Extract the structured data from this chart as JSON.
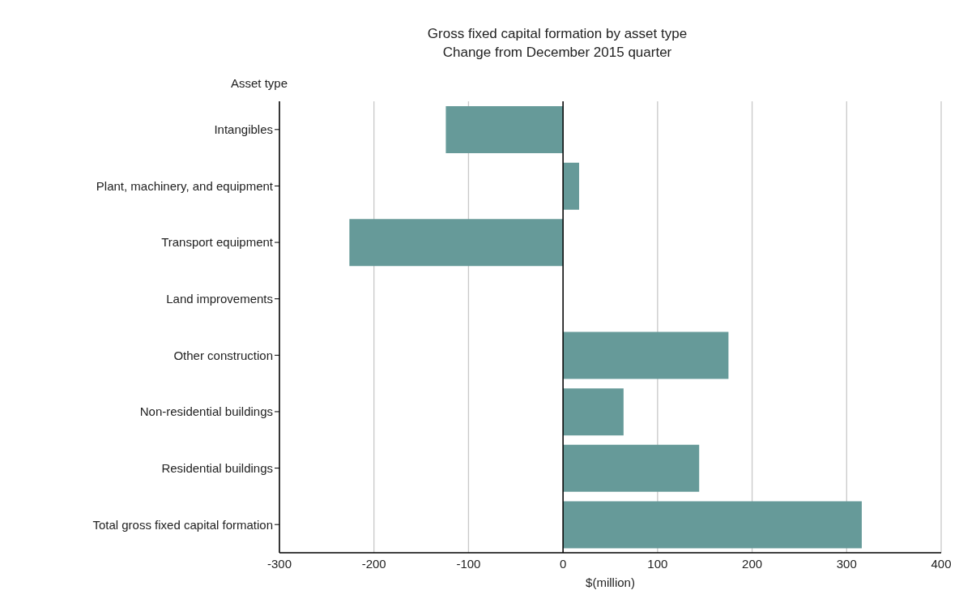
{
  "chart_data": {
    "type": "bar",
    "orientation": "horizontal",
    "title": "Gross fixed capital formation by asset type",
    "subtitle": "Change from December 2015 quarter",
    "ylabel": "Asset type",
    "xlabel": "$(million)",
    "categories": [
      "Intangibles",
      "Plant, machinery, and equipment",
      "Transport equipment",
      "Land improvements",
      "Other construction",
      "Non-residential buildings",
      "Residential buildings",
      "Total gross fixed capital formation"
    ],
    "values": [
      -124,
      17,
      -226,
      0,
      175,
      64,
      144,
      316
    ],
    "color": "#669a99",
    "xlim": [
      -300,
      400
    ],
    "xticks": [
      -300,
      -200,
      -100,
      0,
      100,
      200,
      300,
      400
    ],
    "grid": "x",
    "ref_lines": [
      {
        "axis": "x",
        "value": 0,
        "color": "#000000"
      }
    ]
  }
}
